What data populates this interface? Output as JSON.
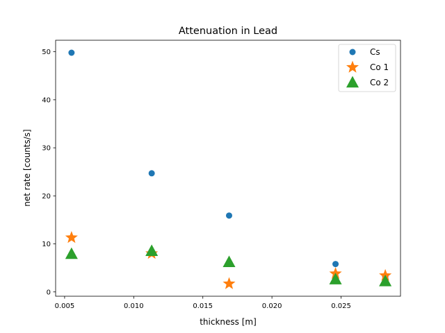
{
  "chart_data": {
    "type": "scatter",
    "title": "Attenuation in Lead",
    "xlabel": "thickness [m]",
    "ylabel": "net rate [counts/s]",
    "xlim": [
      0.00435,
      0.0293
    ],
    "ylim": [
      -0.9,
      52.4
    ],
    "xticks": [
      0.005,
      0.01,
      0.015,
      0.02,
      0.025
    ],
    "xtick_labels": [
      "0.005",
      "0.010",
      "0.015",
      "0.020",
      "0.025"
    ],
    "yticks": [
      0,
      10,
      20,
      30,
      40,
      50
    ],
    "ytick_labels": [
      "0",
      "10",
      "20",
      "30",
      "40",
      "50"
    ],
    "grid": false,
    "legend_position": "top-right",
    "series": [
      {
        "name": "Cs",
        "marker": "circle",
        "color": "#1f77b4",
        "x": [
          0.0055,
          0.0113,
          0.0169,
          0.0246,
          0.0282
        ],
        "y": [
          49.8,
          24.7,
          15.9,
          5.8,
          3.2
        ]
      },
      {
        "name": "Co 1",
        "marker": "star",
        "color": "#ff7f0e",
        "x": [
          0.0055,
          0.0113,
          0.0169,
          0.0246,
          0.0282
        ],
        "y": [
          11.3,
          8.0,
          1.7,
          3.8,
          3.4
        ]
      },
      {
        "name": "Co 2",
        "marker": "triangle",
        "color": "#2ca02c",
        "x": [
          0.0055,
          0.0113,
          0.0169,
          0.0246,
          0.0282
        ],
        "y": [
          7.9,
          8.5,
          6.2,
          2.6,
          2.2
        ]
      }
    ]
  }
}
